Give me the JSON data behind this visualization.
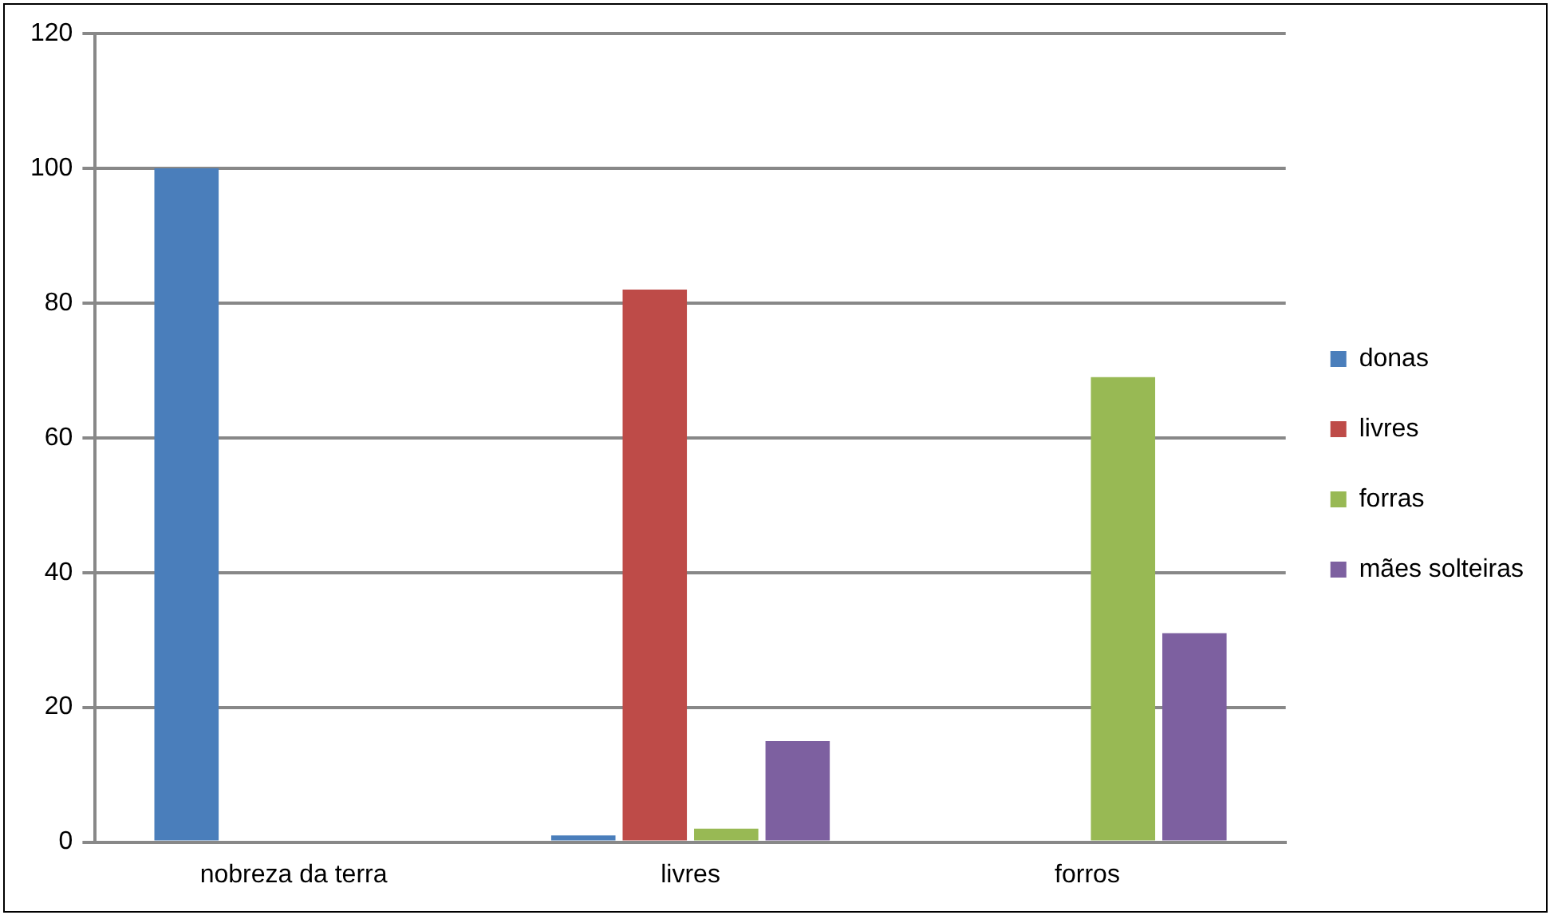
{
  "chart_data": {
    "type": "bar",
    "categories": [
      "nobreza da terra",
      "livres",
      "forros"
    ],
    "series": [
      {
        "name": "donas",
        "color": "#4a7ebb",
        "values": [
          100,
          1,
          0
        ]
      },
      {
        "name": "livres",
        "color": "#be4b48",
        "values": [
          0,
          82,
          0
        ]
      },
      {
        "name": "forras",
        "color": "#98b954",
        "values": [
          0,
          2,
          69
        ]
      },
      {
        "name": "mães solteiras",
        "color": "#7d60a0",
        "values": [
          0,
          15,
          31
        ]
      }
    ],
    "ylim": [
      0,
      120
    ],
    "yticks": [
      0,
      20,
      40,
      60,
      80,
      100,
      120
    ],
    "grid": "y",
    "legend": "right"
  }
}
